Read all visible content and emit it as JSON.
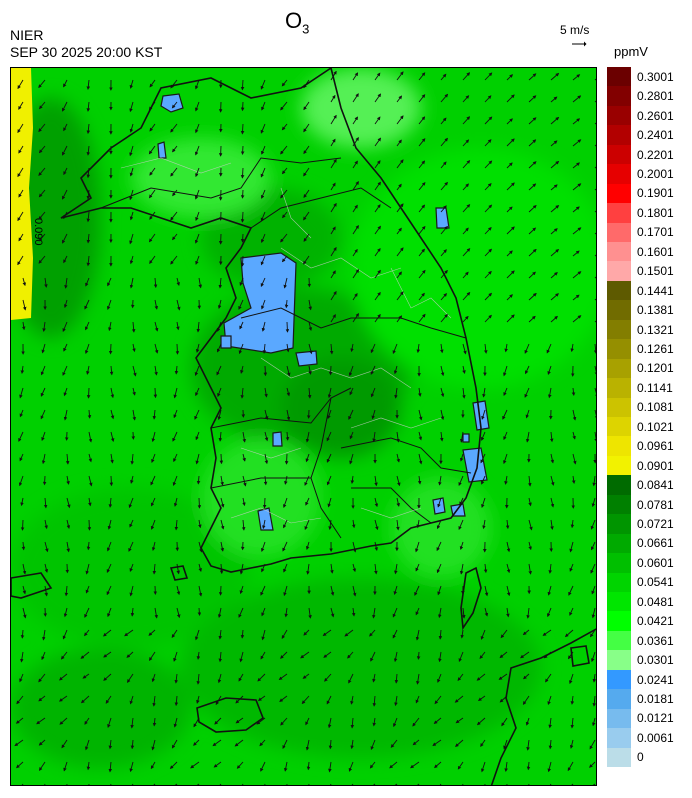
{
  "header": {
    "title": "O",
    "title_sub": "3",
    "agency": "NIER",
    "timestamp": "SEP 30 2025 20:00 KST",
    "wind_reference": "5 m/s",
    "unit": "ppmV"
  },
  "map": {
    "contour_label": "0.090"
  },
  "legend": {
    "labels": [
      "0.3001",
      "0.2801",
      "0.2601",
      "0.2401",
      "0.2201",
      "0.2001",
      "0.1901",
      "0.1801",
      "0.1701",
      "0.1601",
      "0.1501",
      "0.1441",
      "0.1381",
      "0.1321",
      "0.1261",
      "0.1201",
      "0.1141",
      "0.1081",
      "0.1021",
      "0.0961",
      "0.0901",
      "0.0841",
      "0.0781",
      "0.0721",
      "0.0661",
      "0.0601",
      "0.0541",
      "0.0481",
      "0.0421",
      "0.0361",
      "0.0301",
      "0.0241",
      "0.0181",
      "0.0121",
      "0.0061",
      "0"
    ],
    "colors": [
      "#6b0000",
      "#820000",
      "#990000",
      "#b20000",
      "#cc0000",
      "#e60000",
      "#ff0000",
      "#ff4040",
      "#ff6a6a",
      "#ff9090",
      "#ffa8a8",
      "#5e5a00",
      "#716c00",
      "#837e00",
      "#958f00",
      "#a8a100",
      "#bab200",
      "#ccc300",
      "#ddd400",
      "#eee500",
      "#f2f200",
      "#006b00",
      "#008000",
      "#009500",
      "#00aa00",
      "#00bf00",
      "#00d400",
      "#00e600",
      "#00ff00",
      "#44ff44",
      "#88ff88",
      "#3399ff",
      "#55aaee",
      "#77bbee",
      "#99ccee",
      "#bbdde8"
    ]
  }
}
